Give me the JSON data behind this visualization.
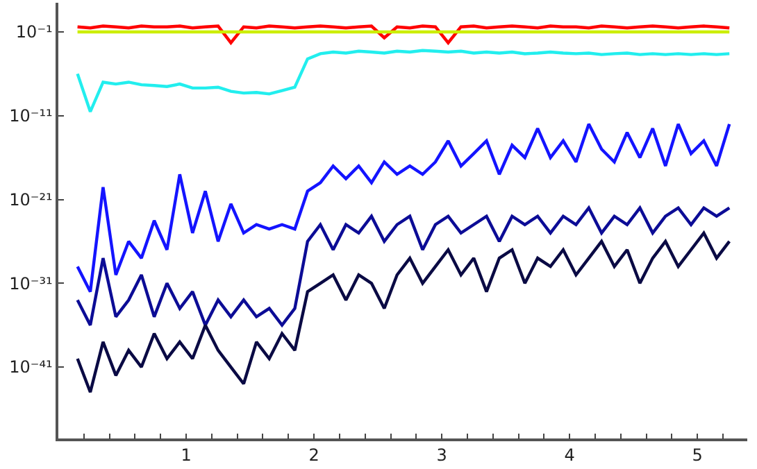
{
  "chart_data": {
    "type": "line",
    "log": "y",
    "marker": "none",
    "line_style": "solid",
    "x": [
      0.15,
      0.25,
      0.35,
      0.45,
      0.55,
      0.65,
      0.75,
      0.85,
      0.95,
      1.05,
      1.15,
      1.25,
      1.35,
      1.45,
      1.55,
      1.65,
      1.75,
      1.85,
      1.95,
      2.05,
      2.15,
      2.25,
      2.35,
      2.45,
      2.55,
      2.65,
      2.75,
      2.85,
      2.95,
      3.05,
      3.15,
      3.25,
      3.35,
      3.45,
      3.55,
      3.65,
      3.75,
      3.85,
      3.95,
      4.05,
      4.15,
      4.25,
      4.35,
      4.45,
      4.55,
      4.65,
      4.75,
      4.85,
      4.95,
      5.05,
      5.15,
      5.25
    ],
    "xlim": [
      0,
      5.39
    ],
    "ylim": [
      3e-50,
      300
    ],
    "xticks": [
      {
        "value": 0.2,
        "label": null
      },
      {
        "value": 0.4,
        "label": null
      },
      {
        "value": 0.6,
        "label": null
      },
      {
        "value": 0.8,
        "label": null
      },
      1,
      {
        "value": 1.2,
        "label": null
      },
      {
        "value": 1.4,
        "label": null
      },
      {
        "value": 1.6,
        "label": null
      },
      {
        "value": 1.8,
        "label": null
      },
      2,
      {
        "value": 2.2,
        "label": null
      },
      {
        "value": 2.4,
        "label": null
      },
      {
        "value": 2.6,
        "label": null
      },
      {
        "value": 2.8,
        "label": null
      },
      3,
      {
        "value": 3.2,
        "label": null
      },
      {
        "value": 3.4,
        "label": null
      },
      {
        "value": 3.6,
        "label": null
      },
      {
        "value": 3.8,
        "label": null
      },
      4,
      {
        "value": 4.2,
        "label": null
      },
      {
        "value": 4.4,
        "label": null
      },
      {
        "value": 4.6,
        "label": null
      },
      {
        "value": 4.8,
        "label": null
      },
      5,
      {
        "value": 5.2,
        "label": null
      }
    ],
    "yticks": [
      {
        "value": 1e-41,
        "label": "10⁻⁴¹"
      },
      {
        "value": 1e-31,
        "label": "10⁻³¹"
      },
      {
        "value": 1e-21,
        "label": "10⁻²¹"
      },
      {
        "value": 1e-11,
        "label": "10⁻¹¹"
      },
      {
        "value": 0.1,
        "label": "10⁻¹"
      }
    ],
    "series": [
      {
        "color": "#ff0000",
        "values": [
          0.4,
          0.3,
          0.5,
          0.4,
          0.3,
          0.5,
          0.4,
          0.4,
          0.5,
          0.3,
          0.4,
          0.5,
          0.005,
          0.4,
          0.3,
          0.5,
          0.4,
          0.3,
          0.4,
          0.5,
          0.4,
          0.3,
          0.4,
          0.5,
          0.02,
          0.4,
          0.3,
          0.5,
          0.4,
          0.005,
          0.4,
          0.5,
          0.3,
          0.4,
          0.5,
          0.4,
          0.3,
          0.5,
          0.4,
          0.4,
          0.3,
          0.5,
          0.4,
          0.3,
          0.4,
          0.5,
          0.4,
          0.3,
          0.4,
          0.5,
          0.4,
          0.3
        ]
      },
      {
        "color": "#ccee00",
        "x": [
          0.15,
          5.25
        ],
        "values": [
          0.1,
          0.1
        ]
      },
      {
        "color": "#22eeee",
        "values": [
          1e-06,
          3e-11,
          1e-07,
          6e-08,
          1e-07,
          5e-08,
          4e-08,
          3e-08,
          6e-08,
          2e-08,
          2e-08,
          2.5e-08,
          8e-09,
          5e-09,
          6e-09,
          4e-09,
          1e-08,
          2.5e-08,
          6e-05,
          0.00025,
          0.0004,
          0.0003,
          0.0005,
          0.0004,
          0.0003,
          0.0005,
          0.0004,
          0.0006,
          0.0005,
          0.0004,
          0.0005,
          0.0003,
          0.0004,
          0.0003,
          0.0004,
          0.00025,
          0.0003,
          0.0004,
          0.0003,
          0.00025,
          0.0003,
          0.0002,
          0.00025,
          0.0003,
          0.0002,
          0.00025,
          0.0002,
          0.00025,
          0.0002,
          0.00025,
          0.0002,
          0.00025
        ]
      },
      {
        "color": "#1414ff",
        "values": [
          1e-29,
          1e-32,
          3e-20,
          1e-30,
          1e-26,
          1e-28,
          3e-24,
          1e-27,
          1e-18,
          1e-25,
          1e-20,
          1e-26,
          3e-22,
          1e-25,
          1e-24,
          3e-25,
          1e-24,
          3e-25,
          1e-20,
          1e-19,
          1e-17,
          3e-19,
          1e-17,
          1e-19,
          3e-17,
          1e-18,
          1e-17,
          1e-18,
          3e-17,
          1e-14,
          1e-17,
          3e-16,
          1e-14,
          1e-18,
          3e-15,
          1e-16,
          3e-13,
          1e-16,
          1e-14,
          3e-17,
          1e-12,
          1e-15,
          3e-17,
          1e-13,
          1e-16,
          3e-13,
          1e-17,
          1e-12,
          3e-16,
          1e-14,
          1e-17,
          1e-12
        ]
      },
      {
        "color": "#0c0c96",
        "values": [
          1e-33,
          1e-36,
          1e-28,
          1e-35,
          1e-33,
          1e-30,
          1e-35,
          1e-31,
          1e-34,
          1e-32,
          1e-36,
          1e-33,
          1e-35,
          1e-33,
          1e-35,
          1e-34,
          1e-36,
          1e-34,
          1e-26,
          1e-24,
          1e-27,
          1e-24,
          1e-25,
          1e-23,
          1e-26,
          1e-24,
          1e-23,
          1e-27,
          1e-24,
          1e-23,
          1e-25,
          1e-24,
          1e-23,
          1e-26,
          1e-23,
          1e-24,
          1e-23,
          1e-25,
          1e-23,
          1e-24,
          1e-22,
          1e-25,
          1e-23,
          1e-24,
          1e-22,
          1e-25,
          1e-23,
          1e-22,
          1e-24,
          1e-22,
          1e-23,
          1e-22
        ]
      },
      {
        "color": "#0a0a44",
        "values": [
          1e-40,
          1e-44,
          1e-38,
          1e-42,
          1e-39,
          1e-41,
          1e-37,
          1e-40,
          1e-38,
          1e-40,
          1e-36,
          1e-39,
          1e-41,
          1e-43,
          1e-38,
          1e-40,
          1e-37,
          1e-39,
          1e-32,
          1e-31,
          1e-30,
          1e-33,
          1e-30,
          1e-31,
          1e-34,
          1e-30,
          1e-28,
          1e-31,
          1e-29,
          1e-27,
          1e-30,
          1e-28,
          1e-32,
          1e-28,
          1e-27,
          1e-31,
          1e-28,
          1e-29,
          1e-27,
          1e-30,
          1e-28,
          1e-26,
          1e-29,
          1e-27,
          1e-31,
          1e-28,
          1e-26,
          1e-29,
          1e-27,
          1e-25,
          1e-28,
          1e-26
        ]
      }
    ]
  }
}
